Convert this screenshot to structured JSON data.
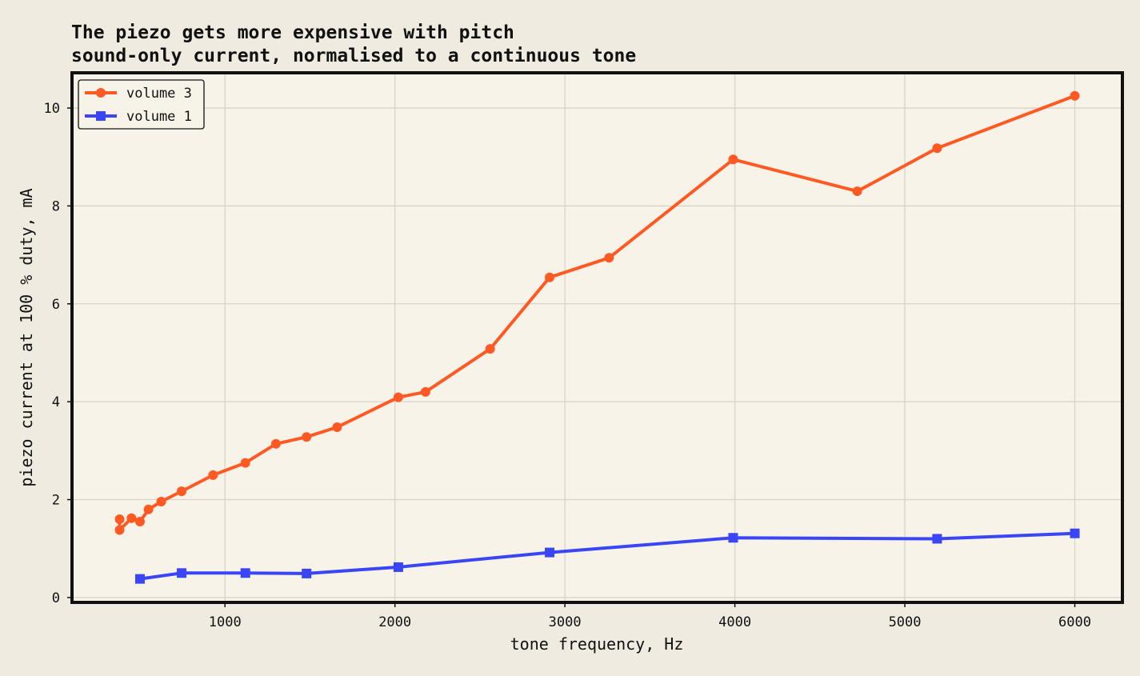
{
  "chart_data": {
    "type": "line",
    "title": "The piezo gets more expensive with pitch",
    "subtitle": "sound-only current, normalised to a continuous tone",
    "xlabel": "tone frequency, Hz",
    "ylabel": "piezo current at 100 % duty, mA",
    "xlim": [
      100,
      6280
    ],
    "ylim": [
      -0.1,
      10.72
    ],
    "xticks": [
      1000,
      2000,
      3000,
      4000,
      5000,
      6000
    ],
    "yticks": [
      0,
      2,
      4,
      6,
      8,
      10
    ],
    "xtick_labels": [
      "1000",
      "2000",
      "3000",
      "4000",
      "5000",
      "6000"
    ],
    "ytick_labels": [
      "0",
      "2",
      "4",
      "6",
      "8",
      "10"
    ],
    "grid": true,
    "legend_position": "top-left",
    "series": [
      {
        "name": "volume 3",
        "color": "#ff5a24",
        "marker": "circle",
        "points": [
          [
            380,
            1.6
          ],
          [
            380,
            1.38
          ],
          [
            450,
            1.62
          ],
          [
            500,
            1.55
          ],
          [
            550,
            1.8
          ],
          [
            625,
            1.96
          ],
          [
            745,
            2.17
          ],
          [
            930,
            2.5
          ],
          [
            1120,
            2.75
          ],
          [
            1300,
            3.14
          ],
          [
            1480,
            3.28
          ],
          [
            1660,
            3.48
          ],
          [
            2020,
            4.09
          ],
          [
            2180,
            4.2
          ],
          [
            2560,
            5.08
          ],
          [
            2910,
            6.54
          ],
          [
            3260,
            6.94
          ],
          [
            3990,
            8.95
          ],
          [
            4720,
            8.3
          ],
          [
            5190,
            9.18
          ],
          [
            6000,
            10.25
          ]
        ]
      },
      {
        "name": "volume 1",
        "color": "#3a46f5",
        "marker": "square",
        "points": [
          [
            500,
            0.38
          ],
          [
            745,
            0.5
          ],
          [
            1120,
            0.5
          ],
          [
            1480,
            0.49
          ],
          [
            2020,
            0.62
          ],
          [
            2910,
            0.92
          ],
          [
            3990,
            1.22
          ],
          [
            5190,
            1.2
          ],
          [
            6000,
            1.31
          ]
        ]
      }
    ]
  }
}
